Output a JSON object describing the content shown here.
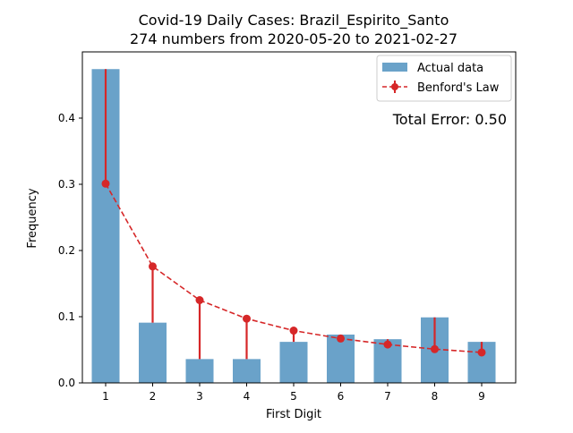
{
  "chart_data": {
    "type": "bar",
    "title": "Covid-19 Daily Cases: Brazil_Espirito_Santo",
    "subtitle": "274 numbers from 2020-05-20 to 2021-02-27",
    "xlabel": "First Digit",
    "ylabel": "Frequency",
    "categories": [
      "1",
      "2",
      "3",
      "4",
      "5",
      "6",
      "7",
      "8",
      "9"
    ],
    "series": [
      {
        "name": "Actual data",
        "kind": "bar",
        "color": "#6aa2c9",
        "values": [
          0.474,
          0.091,
          0.036,
          0.036,
          0.062,
          0.073,
          0.066,
          0.099,
          0.062
        ]
      },
      {
        "name": "Benford's Law",
        "kind": "line",
        "color": "#d62728",
        "values": [
          0.301,
          0.176,
          0.125,
          0.097,
          0.079,
          0.067,
          0.058,
          0.051,
          0.046
        ]
      }
    ],
    "ylim": [
      0,
      0.5
    ],
    "yticks": [
      "0.0",
      "0.1",
      "0.2",
      "0.3",
      "0.4"
    ],
    "legend": "top-right",
    "grid": false,
    "annotation": "Total Error: 0.50",
    "annotation_color": "#d62728"
  }
}
